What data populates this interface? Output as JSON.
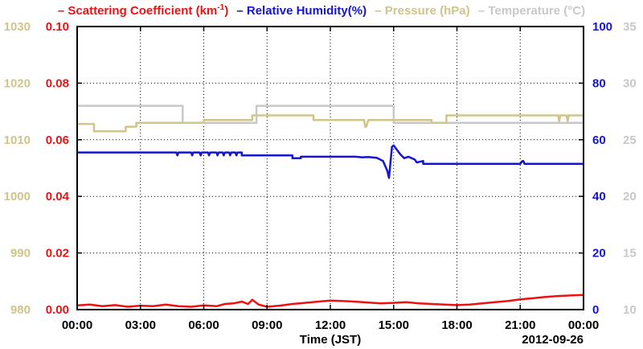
{
  "chart_data": {
    "type": "line",
    "legend": [
      {
        "label": "Scattering Coefficient (km",
        "sup": "-1",
        "tail": ")",
        "color": "#ee1111"
      },
      {
        "label": "Relative Humidity(%)",
        "color": "#1515d0"
      },
      {
        "label": "Pressure (hPa)",
        "color": "#cfc58a"
      },
      {
        "label": "Temperature (°C)",
        "color": "#c8c8c8"
      }
    ],
    "xlabel": "Time (JST)",
    "date_label": "2012-09-26",
    "x_ticks": [
      "00:00",
      "03:00",
      "06:00",
      "09:00",
      "12:00",
      "15:00",
      "18:00",
      "21:00",
      "00:00"
    ],
    "xlim": [
      0,
      24
    ],
    "axes": {
      "pressure": {
        "ticks": [
          "980",
          "990",
          "1000",
          "1010",
          "1020",
          "1030"
        ],
        "range": [
          980,
          1030
        ],
        "color": "#cfc58a"
      },
      "scattering": {
        "ticks": [
          "0.00",
          "0.02",
          "0.04",
          "0.06",
          "0.08",
          "0.10"
        ],
        "range": [
          0,
          0.1
        ],
        "color": "#ee1111"
      },
      "humidity": {
        "ticks": [
          "0",
          "20",
          "40",
          "60",
          "80",
          "100"
        ],
        "range": [
          0,
          100
        ],
        "color": "#1515d0"
      },
      "temperature": {
        "ticks": [
          "10",
          "15",
          "20",
          "25",
          "30",
          "35"
        ],
        "range": [
          10,
          35
        ],
        "color": "#c8c8c8"
      }
    },
    "grid": true,
    "series": [
      {
        "name": "Temperature (°C)",
        "axis": "temperature",
        "color": "#c8c8c8",
        "x": [
          0,
          5.0,
          5.0,
          6.0,
          6.0,
          8.5,
          8.5,
          15.0,
          15.0,
          24.0
        ],
        "y": [
          28.0,
          28.0,
          26.5,
          26.5,
          26.5,
          26.5,
          28.0,
          28.0,
          26.5,
          26.5
        ]
      },
      {
        "name": "Pressure (hPa)",
        "axis": "pressure",
        "color": "#cfc58a",
        "x": [
          0,
          0.8,
          0.8,
          2.3,
          2.3,
          2.8,
          2.8,
          6.0,
          6.0,
          8.3,
          8.3,
          11.2,
          11.2,
          13.6,
          13.65,
          13.7,
          13.8,
          16.8,
          16.8,
          17.5,
          17.5,
          22.8,
          22.85,
          22.9,
          23.2,
          23.25,
          23.3,
          24.0
        ],
        "y": [
          1012.8,
          1012.8,
          1011.5,
          1011.5,
          1012.3,
          1012.3,
          1013.0,
          1013.0,
          1013.5,
          1013.5,
          1014.3,
          1014.3,
          1013.5,
          1013.5,
          1012.3,
          1012.3,
          1013.5,
          1013.5,
          1013.0,
          1013.0,
          1014.3,
          1014.3,
          1013.3,
          1014.3,
          1014.3,
          1013.3,
          1014.3,
          1014.3
        ]
      },
      {
        "name": "Relative Humidity(%)",
        "axis": "humidity",
        "color": "#1515d0",
        "x": [
          0,
          4.7,
          4.75,
          4.8,
          5.4,
          5.45,
          5.5,
          5.8,
          5.85,
          5.9,
          6.2,
          6.25,
          6.3,
          6.6,
          6.65,
          6.7,
          6.9,
          6.95,
          7.0,
          7.2,
          7.25,
          7.3,
          7.5,
          7.55,
          7.6,
          7.8,
          7.8,
          10.2,
          10.2,
          10.6,
          10.6,
          13.2,
          13.5,
          13.8,
          14.2,
          14.5,
          14.7,
          14.78,
          14.85,
          14.92,
          15.0,
          15.1,
          15.3,
          15.5,
          15.7,
          16.0,
          16.1,
          16.4,
          16.4,
          17.4,
          17.4,
          21.0,
          21.1,
          21.15,
          21.2,
          22.5,
          22.5,
          24.0
        ],
        "y": [
          55.5,
          55.5,
          54.5,
          55.5,
          55.5,
          54.5,
          55.5,
          55.5,
          54.5,
          55.5,
          55.5,
          54.5,
          55.5,
          55.5,
          54.5,
          55.5,
          55.5,
          54.5,
          55.5,
          55.5,
          54.5,
          55.5,
          55.5,
          54.5,
          55.5,
          55.5,
          54.5,
          54.5,
          53.5,
          53.5,
          54.0,
          54.0,
          53.8,
          53.9,
          53.6,
          52.5,
          49.0,
          46.5,
          52.0,
          57.5,
          58.0,
          57.0,
          55.0,
          53.5,
          54.0,
          53.0,
          52.0,
          52.5,
          51.5,
          51.5,
          51.5,
          51.5,
          52.5,
          52.5,
          51.5,
          51.5,
          51.5,
          51.5
        ]
      },
      {
        "name": "Scattering Coefficient (km-1)",
        "axis": "scattering",
        "color": "#ee1111",
        "x": [
          0,
          0.6,
          1.2,
          1.8,
          2.4,
          3.0,
          3.6,
          4.2,
          4.8,
          5.4,
          6.0,
          6.6,
          7.0,
          7.4,
          7.8,
          8.1,
          8.3,
          8.6,
          9.0,
          9.6,
          10.2,
          10.8,
          11.4,
          12.0,
          12.6,
          13.2,
          13.8,
          14.4,
          15.0,
          15.6,
          16.2,
          16.8,
          17.4,
          18.0,
          18.6,
          19.2,
          19.8,
          20.4,
          21.0,
          21.6,
          22.2,
          22.8,
          23.4,
          24.0
        ],
        "y": [
          0.0015,
          0.0018,
          0.0012,
          0.0016,
          0.001,
          0.0014,
          0.0012,
          0.0018,
          0.0012,
          0.001,
          0.0015,
          0.0012,
          0.002,
          0.0022,
          0.0028,
          0.002,
          0.0035,
          0.0018,
          0.001,
          0.0014,
          0.002,
          0.0024,
          0.0028,
          0.0032,
          0.003,
          0.0028,
          0.0025,
          0.0022,
          0.0024,
          0.0026,
          0.0022,
          0.002,
          0.0018,
          0.0016,
          0.0018,
          0.0022,
          0.0026,
          0.003,
          0.0036,
          0.004,
          0.0045,
          0.0048,
          0.005,
          0.0052
        ]
      }
    ]
  }
}
